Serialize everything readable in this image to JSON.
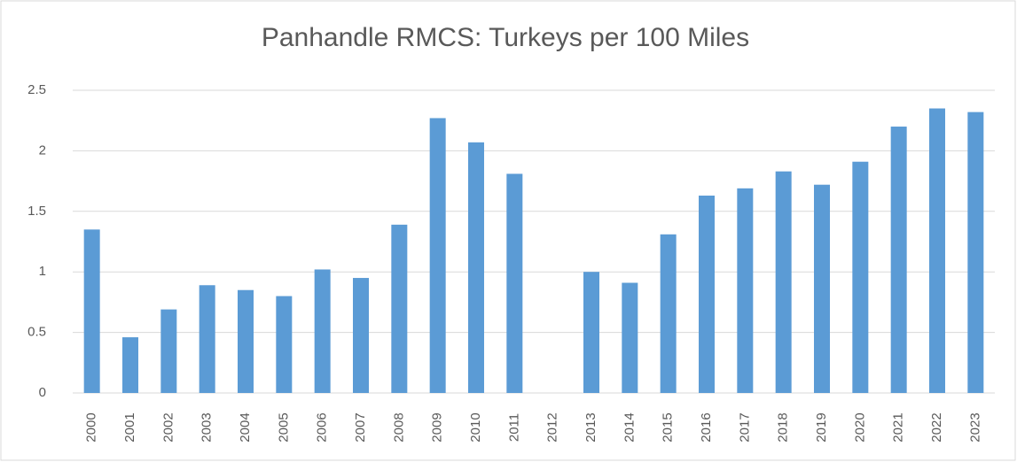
{
  "chart_data": {
    "type": "bar",
    "title": "Panhandle RMCS: Turkeys per 100 Miles",
    "categories": [
      "2000",
      "2001",
      "2002",
      "2003",
      "2004",
      "2005",
      "2006",
      "2007",
      "2008",
      "2009",
      "2010",
      "2011",
      "2012",
      "2013",
      "2014",
      "2015",
      "2016",
      "2017",
      "2018",
      "2019",
      "2020",
      "2021",
      "2022",
      "2023"
    ],
    "values": [
      1.35,
      0.46,
      0.69,
      0.89,
      0.85,
      0.8,
      1.02,
      0.95,
      1.39,
      2.27,
      2.07,
      1.81,
      null,
      1.0,
      0.91,
      1.31,
      1.63,
      1.69,
      1.83,
      1.72,
      1.91,
      2.2,
      2.35,
      2.32
    ],
    "color": "#5b9bd5",
    "ylim": [
      0,
      2.5
    ],
    "yticks": [
      0,
      0.5,
      1,
      1.5,
      2,
      2.5
    ],
    "grid": true
  }
}
